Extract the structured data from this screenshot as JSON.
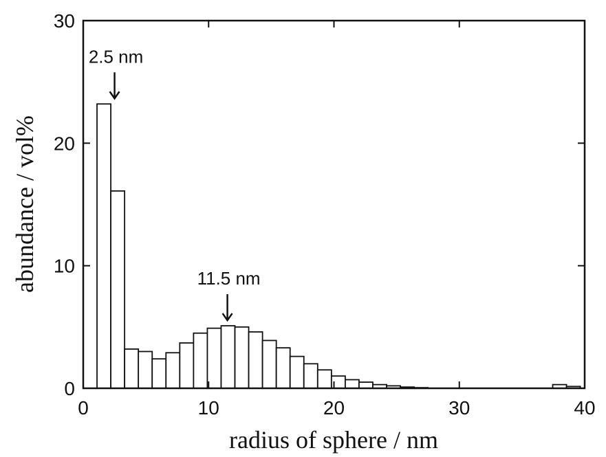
{
  "chart_data": {
    "type": "bar",
    "xlabel": "radius of sphere / nm",
    "ylabel": "abundance / vol%",
    "xlim": [
      0,
      40
    ],
    "ylim": [
      0,
      30
    ],
    "xticks": [
      0,
      10,
      20,
      30,
      40
    ],
    "yticks": [
      0,
      10,
      20,
      30
    ],
    "grid": false,
    "bin_width": 1.1,
    "bins": [
      {
        "x": 1.65,
        "y": 23.2
      },
      {
        "x": 2.75,
        "y": 16.1
      },
      {
        "x": 3.85,
        "y": 3.2
      },
      {
        "x": 4.95,
        "y": 3.0
      },
      {
        "x": 6.05,
        "y": 2.4
      },
      {
        "x": 7.15,
        "y": 2.9
      },
      {
        "x": 8.25,
        "y": 3.7
      },
      {
        "x": 9.35,
        "y": 4.5
      },
      {
        "x": 10.45,
        "y": 4.9
      },
      {
        "x": 11.55,
        "y": 5.1
      },
      {
        "x": 12.65,
        "y": 5.0
      },
      {
        "x": 13.75,
        "y": 4.6
      },
      {
        "x": 14.85,
        "y": 3.9
      },
      {
        "x": 15.95,
        "y": 3.3
      },
      {
        "x": 17.05,
        "y": 2.6
      },
      {
        "x": 18.15,
        "y": 2.0
      },
      {
        "x": 19.25,
        "y": 1.5
      },
      {
        "x": 20.35,
        "y": 1.0
      },
      {
        "x": 21.45,
        "y": 0.7
      },
      {
        "x": 22.55,
        "y": 0.5
      },
      {
        "x": 23.65,
        "y": 0.3
      },
      {
        "x": 24.75,
        "y": 0.2
      },
      {
        "x": 25.85,
        "y": 0.1
      },
      {
        "x": 26.95,
        "y": 0.05
      },
      {
        "x": 38.0,
        "y": 0.3
      },
      {
        "x": 39.1,
        "y": 0.15
      }
    ],
    "annotations": [
      {
        "text": "2.5 nm",
        "x": 2.5,
        "y": 23.2
      },
      {
        "text": "11.5 nm",
        "x": 11.5,
        "y": 5.1
      }
    ]
  }
}
